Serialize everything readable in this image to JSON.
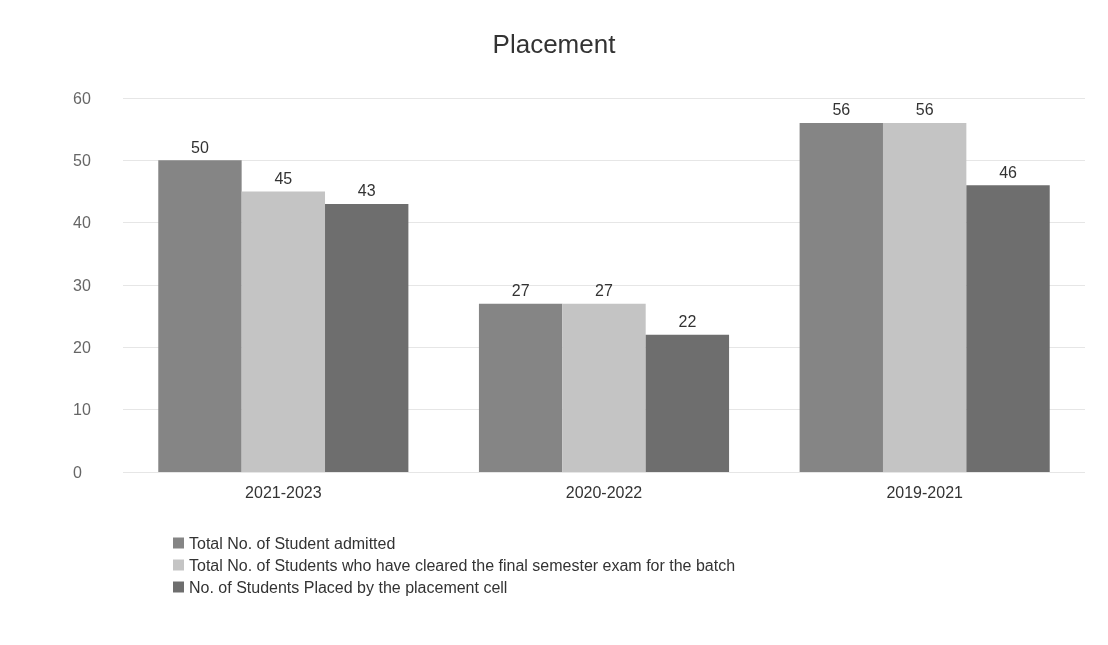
{
  "chart_data": {
    "type": "bar",
    "title": "Placement",
    "categories": [
      "2021-2023",
      "2020-2022",
      "2019-2021"
    ],
    "series": [
      {
        "name": "Total No. of Student admitted",
        "color": "#858585",
        "values": [
          50,
          27,
          56
        ]
      },
      {
        "name": "Total No. of Students who have cleared the final semester exam for the batch",
        "color": "#c4c4c4",
        "values": [
          45,
          27,
          56
        ]
      },
      {
        "name": "No. of Students Placed by the placement cell",
        "color": "#6e6e6e",
        "values": [
          43,
          22,
          46
        ]
      }
    ],
    "ylim": [
      0,
      60
    ],
    "yticks": [
      0,
      10,
      20,
      30,
      40,
      50,
      60
    ],
    "grid": "y",
    "legend": "bottom",
    "data_labels": true
  }
}
